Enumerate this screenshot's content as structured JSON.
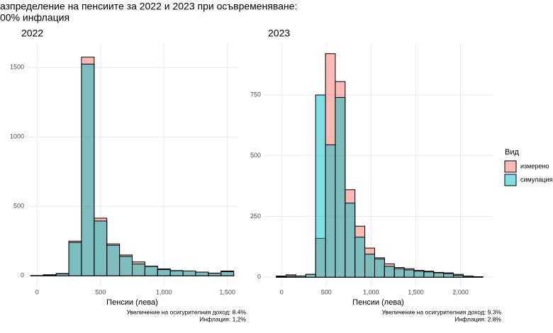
{
  "title": [
    "азпределение на пенсиите за 2022 и 2023 при осъвременяване:",
    "00% инфлация"
  ],
  "chart_data": [
    {
      "type": "histogram",
      "title": "2022",
      "xlabel": "Пенсии (лева)",
      "caption": [
        "Увеличение на осигурителния доход: 8.4%",
        "Инфлация: 1,2%"
      ],
      "legend_title": "Вид",
      "legend": "right",
      "grid": true,
      "bins": [
        -50,
        50,
        150,
        250,
        350,
        450,
        550,
        650,
        750,
        850,
        950,
        1050,
        1150,
        1250,
        1350,
        1450,
        1550
      ],
      "series": [
        {
          "name": "измерено",
          "color": "#F8766D",
          "values": [
            2,
            8,
            17,
            250,
            1575,
            415,
            230,
            150,
            100,
            70,
            50,
            35,
            35,
            27,
            18,
            35
          ]
        },
        {
          "name": "симулация",
          "color": "#00BFC4",
          "values": [
            2,
            6,
            15,
            240,
            1525,
            395,
            220,
            140,
            85,
            68,
            45,
            38,
            35,
            27,
            20,
            30
          ]
        }
      ],
      "xlim": [
        -80,
        1580
      ],
      "xticks": [
        0,
        500,
        {
          "value": 1000,
          "label": "1,000"
        },
        {
          "value": 1500,
          "label": "1,500"
        }
      ],
      "ylim": [
        -80,
        1670
      ],
      "yticks": [
        0,
        500,
        1000,
        1500
      ]
    },
    {
      "type": "histogram",
      "title": "2023",
      "xlabel": "Пенсии (лева)",
      "caption": [
        "Увеличение на осигурителния доход: 9.3%",
        "Инфлация: 2.8%"
      ],
      "grid": true,
      "bins": [
        -60,
        50,
        160,
        270,
        380,
        490,
        600,
        710,
        820,
        930,
        1040,
        1150,
        1260,
        1370,
        1480,
        1590,
        1700,
        1810,
        1920,
        2030,
        2140,
        2250
      ],
      "series": [
        {
          "color": "#F8766D",
          "values": [
            5,
            10,
            5,
            12,
            160,
            920,
            805,
            360,
            210,
            120,
            80,
            55,
            40,
            35,
            28,
            25,
            20,
            18,
            12,
            5,
            2
          ]
        },
        {
          "color": "#00BFC4",
          "values": [
            3,
            5,
            5,
            12,
            750,
            545,
            740,
            305,
            165,
            95,
            75,
            45,
            35,
            30,
            25,
            22,
            18,
            15,
            8,
            4,
            2
          ]
        }
      ],
      "xlim": [
        -200,
        2360
      ],
      "xticks": [
        0,
        500,
        {
          "value": 1000,
          "label": "1,000"
        },
        {
          "value": 1500,
          "label": "1,500"
        },
        {
          "value": 2000,
          "label": "2,000"
        }
      ],
      "ylim": [
        -40,
        960
      ],
      "yticks": [
        0,
        250,
        500,
        750
      ]
    }
  ]
}
